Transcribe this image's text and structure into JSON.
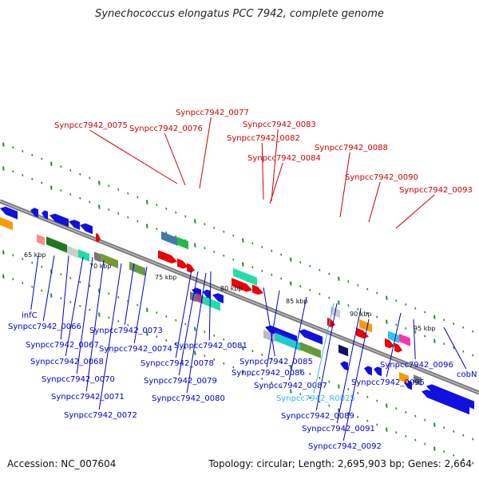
{
  "header": {
    "title": "Synechococcus elongatus PCC 7942, complete genome"
  },
  "footer": {
    "accession": "Accession: NC_007604",
    "summary": "Topology: circular; Length: 2,695,903 bp; Genes: 2,664"
  },
  "colors": {
    "top_label": "#cc0000",
    "bottom_label": "#0000cc",
    "rna_label": "#33bbee",
    "axis": "#888888",
    "tick": "#2a8a2a"
  },
  "kbp_marks": [
    "65 kbp",
    "70 kbp",
    "75 kbp",
    "80 kbp",
    "85 kbp",
    "90 kbp",
    "95 kbp"
  ],
  "top_labels": [
    "Synpcc7942_0075",
    "Synpcc7942_0076",
    "Synpcc7942_0077",
    "Synpcc7942_0083",
    "Synpcc7942_0082",
    "Synpcc7942_0084",
    "Synpcc7942_0088",
    "Synpcc7942_0090",
    "Synpcc7942_0093"
  ],
  "bottom_labels": [
    "infC",
    "Synpcc7942_0066",
    "Synpcc7942_0067",
    "Synpcc7942_0068",
    "Synpcc7942_0070",
    "Synpcc7942_0071",
    "Synpcc7942_0072",
    "Synpcc7942_0073",
    "Synpcc7942_0074",
    "Synpcc7942_0081",
    "Synpcc7942_0078",
    "Synpcc7942_0079",
    "Synpcc7942_0080",
    "Synpcc7942_0085",
    "Synpcc7942_0086",
    "Synpcc7942_0087",
    "Synpcc7942_R0025",
    "Synpcc7942_0089",
    "Synpcc7942_0091",
    "Synpcc7942_0092",
    "Synpcc7942_0095",
    "Synpcc7942_0096",
    "cobN"
  ]
}
